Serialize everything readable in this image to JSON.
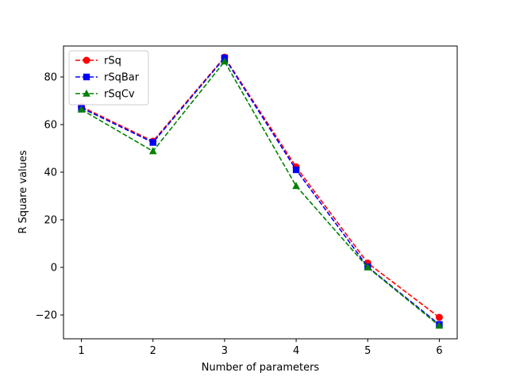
{
  "chart_data": {
    "type": "line",
    "title": "",
    "xlabel": "Number of parameters",
    "ylabel": "R Square values",
    "x": [
      1,
      2,
      3,
      4,
      5,
      6
    ],
    "xticks": [
      1,
      2,
      3,
      4,
      5,
      6
    ],
    "yticks": [
      -20,
      0,
      20,
      40,
      60,
      80
    ],
    "xlim": [
      0.75,
      6.25
    ],
    "ylim": [
      -30,
      93
    ],
    "grid": false,
    "legend_position": "top-left",
    "series": [
      {
        "name": "rSq",
        "values": [
          67.5,
          53.0,
          88.3,
          42.2,
          1.8,
          -21.0
        ],
        "color": "#ff0000",
        "marker": "circle",
        "linestyle": "dashed"
      },
      {
        "name": "rSqBar",
        "values": [
          67.0,
          52.5,
          88.0,
          41.0,
          0.2,
          -24.0
        ],
        "color": "#0000ff",
        "marker": "square",
        "linestyle": "dashed"
      },
      {
        "name": "rSqCv",
        "values": [
          66.3,
          48.8,
          86.5,
          34.2,
          0.0,
          -24.5
        ],
        "color": "#008000",
        "marker": "triangle",
        "linestyle": "dashed"
      }
    ]
  }
}
